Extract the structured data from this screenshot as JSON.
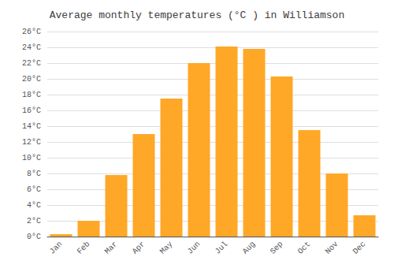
{
  "chart_data": {
    "type": "bar",
    "title": "Average monthly temperatures (°C ) in Williamson",
    "categories": [
      "Jan",
      "Feb",
      "Mar",
      "Apr",
      "May",
      "Jun",
      "Jul",
      "Aug",
      "Sep",
      "Oct",
      "Nov",
      "Dec"
    ],
    "values": [
      0.3,
      2.0,
      7.8,
      13.0,
      17.5,
      22.0,
      24.1,
      23.8,
      20.3,
      13.5,
      8.0,
      2.7
    ],
    "color": "#FFA726",
    "ylim": [
      0,
      26
    ],
    "yticks": [
      {
        "value": 0,
        "label": "0°C"
      },
      {
        "value": 2,
        "label": "2°C"
      },
      {
        "value": 4,
        "label": "4°C"
      },
      {
        "value": 6,
        "label": "6°C"
      },
      {
        "value": 8,
        "label": "8°C"
      },
      {
        "value": 10,
        "label": "10°C"
      },
      {
        "value": 12,
        "label": "12°C"
      },
      {
        "value": 14,
        "label": "14°C"
      },
      {
        "value": 16,
        "label": "16°C"
      },
      {
        "value": 18,
        "label": "18°C"
      },
      {
        "value": 20,
        "label": "20°C"
      },
      {
        "value": 22,
        "label": "22°C"
      },
      {
        "value": 24,
        "label": "24°C"
      },
      {
        "value": 26,
        "label": "26°C"
      }
    ],
    "grid": true
  }
}
